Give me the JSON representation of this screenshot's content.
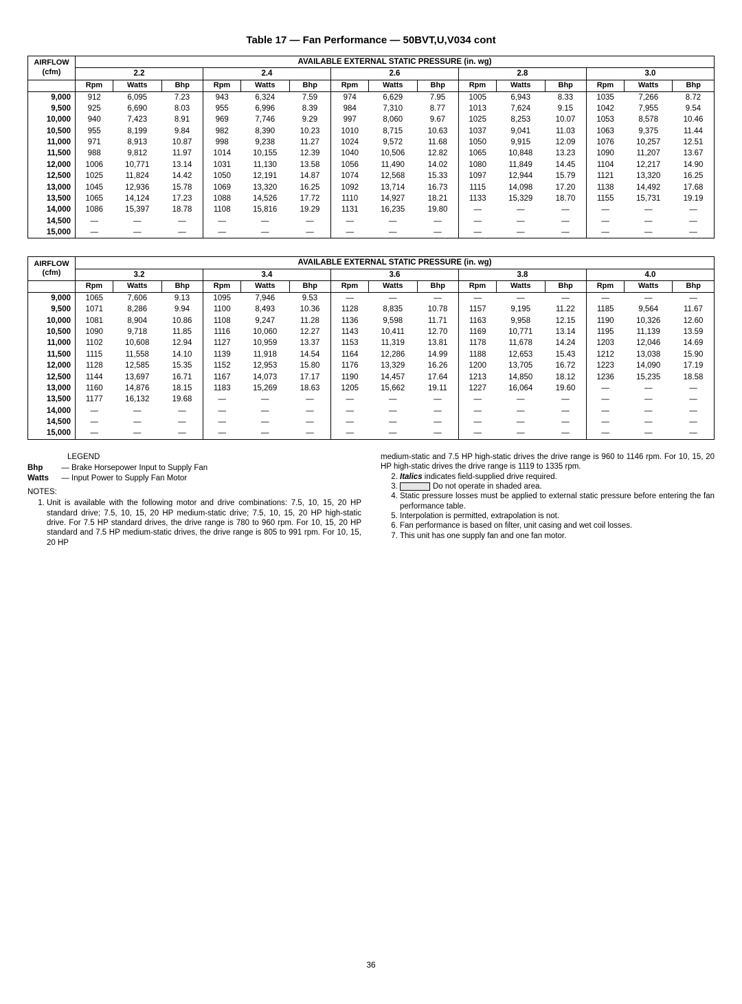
{
  "title": "Table 17 — Fan Performance — 50BVT,U,V034 cont",
  "super_header": "AVAILABLE EXTERNAL STATIC PRESSURE (in. wg)",
  "airflow_label_line1": "AIRFLOW",
  "airflow_label_line2": "(cfm)",
  "sub_headers": [
    "Rpm",
    "Watts",
    "Bhp"
  ],
  "table1": {
    "pressures": [
      "2.2",
      "2.4",
      "2.6",
      "2.8",
      "3.0"
    ],
    "airflows": [
      "9,000",
      "9,500",
      "10,000",
      "10,500",
      "11,000",
      "11,500",
      "12,000",
      "12,500",
      "13,000",
      "13,500",
      "14,000",
      "14,500",
      "15,000"
    ],
    "data": [
      [
        [
          "912",
          "6,095",
          "7.23"
        ],
        [
          "943",
          "6,324",
          "7.59"
        ],
        [
          "974",
          "6,629",
          "7.95"
        ],
        [
          "1005",
          "6,943",
          "8.33"
        ],
        [
          "1035",
          "7,266",
          "8.72"
        ]
      ],
      [
        [
          "925",
          "6,690",
          "8.03"
        ],
        [
          "955",
          "6,996",
          "8.39"
        ],
        [
          "984",
          "7,310",
          "8.77"
        ],
        [
          "1013",
          "7,624",
          "9.15"
        ],
        [
          "1042",
          "7,955",
          "9.54"
        ]
      ],
      [
        [
          "940",
          "7,423",
          "8.91"
        ],
        [
          "969",
          "7,746",
          "9.29"
        ],
        [
          "997",
          "8,060",
          "9.67"
        ],
        [
          "1025",
          "8,253",
          "10.07"
        ],
        [
          "1053",
          "8,578",
          "10.46"
        ]
      ],
      [
        [
          "955",
          "8,199",
          "9.84"
        ],
        [
          "982",
          "8,390",
          "10.23"
        ],
        [
          "1010",
          "8,715",
          "10.63"
        ],
        [
          "1037",
          "9,041",
          "11.03"
        ],
        [
          "1063",
          "9,375",
          "11.44"
        ]
      ],
      [
        [
          "971",
          "8,913",
          "10.87"
        ],
        [
          "998",
          "9,238",
          "11.27"
        ],
        [
          "1024",
          "9,572",
          "11.68"
        ],
        [
          "1050",
          "9,915",
          "12.09"
        ],
        [
          "1076",
          "10,257",
          "12.51"
        ]
      ],
      [
        [
          "988",
          "9,812",
          "11.97"
        ],
        [
          "1014",
          "10,155",
          "12.39"
        ],
        [
          "1040",
          "10,506",
          "12.82"
        ],
        [
          "1065",
          "10,848",
          "13.23"
        ],
        [
          "1090",
          "11,207",
          "13.67"
        ]
      ],
      [
        [
          "1006",
          "10,771",
          "13.14"
        ],
        [
          "1031",
          "11,130",
          "13.58"
        ],
        [
          "1056",
          "11,490",
          "14.02"
        ],
        [
          "1080",
          "11,849",
          "14.45"
        ],
        [
          "1104",
          "12,217",
          "14.90"
        ]
      ],
      [
        [
          "1025",
          "11,824",
          "14.42"
        ],
        [
          "1050",
          "12,191",
          "14.87"
        ],
        [
          "1074",
          "12,568",
          "15.33"
        ],
        [
          "1097",
          "12,944",
          "15.79"
        ],
        [
          "1121",
          "13,320",
          "16.25"
        ]
      ],
      [
        [
          "1045",
          "12,936",
          "15.78"
        ],
        [
          "1069",
          "13,320",
          "16.25"
        ],
        [
          "1092",
          "13,714",
          "16.73"
        ],
        [
          "1115",
          "14,098",
          "17.20"
        ],
        [
          "1138",
          "14,492",
          "17.68"
        ]
      ],
      [
        [
          "1065",
          "14,124",
          "17.23"
        ],
        [
          "1088",
          "14,526",
          "17.72"
        ],
        [
          "1110",
          "14,927",
          "18.21"
        ],
        [
          "1133",
          "15,329",
          "18.70"
        ],
        [
          "1155",
          "15,731",
          "19.19"
        ]
      ],
      [
        [
          "1086",
          "15,397",
          "18.78"
        ],
        [
          "1108",
          "15,816",
          "19.29"
        ],
        [
          "1131",
          "16,235",
          "19.80"
        ],
        [
          "—",
          "—",
          "—"
        ],
        [
          "—",
          "—",
          "—"
        ]
      ],
      [
        [
          "—",
          "—",
          "—"
        ],
        [
          "—",
          "—",
          "—"
        ],
        [
          "—",
          "—",
          "—"
        ],
        [
          "—",
          "—",
          "—"
        ],
        [
          "—",
          "—",
          "—"
        ]
      ],
      [
        [
          "—",
          "—",
          "—"
        ],
        [
          "—",
          "—",
          "—"
        ],
        [
          "—",
          "—",
          "—"
        ],
        [
          "—",
          "—",
          "—"
        ],
        [
          "—",
          "—",
          "—"
        ]
      ]
    ]
  },
  "table2": {
    "pressures": [
      "3.2",
      "3.4",
      "3.6",
      "3.8",
      "4.0"
    ],
    "airflows": [
      "9,000",
      "9,500",
      "10,000",
      "10,500",
      "11,000",
      "11,500",
      "12,000",
      "12,500",
      "13,000",
      "13,500",
      "14,000",
      "14,500",
      "15,000"
    ],
    "data": [
      [
        [
          "1065",
          "7,606",
          "9.13"
        ],
        [
          "1095",
          "7,946",
          "9.53"
        ],
        [
          "—",
          "—",
          "—"
        ],
        [
          "—",
          "—",
          "—"
        ],
        [
          "—",
          "—",
          "—"
        ]
      ],
      [
        [
          "1071",
          "8,286",
          "9.94"
        ],
        [
          "1100",
          "8,493",
          "10.36"
        ],
        [
          "1128",
          "8,835",
          "10.78"
        ],
        [
          "1157",
          "9,195",
          "11.22"
        ],
        [
          "1185",
          "9,564",
          "11.67"
        ]
      ],
      [
        [
          "1081",
          "8,904",
          "10.86"
        ],
        [
          "1108",
          "9,247",
          "11.28"
        ],
        [
          "1136",
          "9,598",
          "11.71"
        ],
        [
          "1163",
          "9,958",
          "12.15"
        ],
        [
          "1190",
          "10,326",
          "12.60"
        ]
      ],
      [
        [
          "1090",
          "9,718",
          "11.85"
        ],
        [
          "1116",
          "10,060",
          "12.27"
        ],
        [
          "1143",
          "10,411",
          "12.70"
        ],
        [
          "1169",
          "10,771",
          "13.14"
        ],
        [
          "1195",
          "11,139",
          "13.59"
        ]
      ],
      [
        [
          "1102",
          "10,608",
          "12.94"
        ],
        [
          "1127",
          "10,959",
          "13.37"
        ],
        [
          "1153",
          "11,319",
          "13.81"
        ],
        [
          "1178",
          "11,678",
          "14.24"
        ],
        [
          "1203",
          "12,046",
          "14.69"
        ]
      ],
      [
        [
          "1115",
          "11,558",
          "14.10"
        ],
        [
          "1139",
          "11,918",
          "14.54"
        ],
        [
          "1164",
          "12,286",
          "14.99"
        ],
        [
          "1188",
          "12,653",
          "15.43"
        ],
        [
          "1212",
          "13,038",
          "15.90"
        ]
      ],
      [
        [
          "1128",
          "12,585",
          "15.35"
        ],
        [
          "1152",
          "12,953",
          "15.80"
        ],
        [
          "1176",
          "13,329",
          "16.26"
        ],
        [
          "1200",
          "13,705",
          "16.72"
        ],
        [
          "1223",
          "14,090",
          "17.19"
        ]
      ],
      [
        [
          "1144",
          "13,697",
          "16.71"
        ],
        [
          "1167",
          "14,073",
          "17.17"
        ],
        [
          "1190",
          "14,457",
          "17.64"
        ],
        [
          "1213",
          "14,850",
          "18.12"
        ],
        [
          "1236",
          "15,235",
          "18.58"
        ]
      ],
      [
        [
          "1160",
          "14,876",
          "18.15"
        ],
        [
          "1183",
          "15,269",
          "18.63"
        ],
        [
          "1205",
          "15,662",
          "19.11"
        ],
        [
          "1227",
          "16,064",
          "19.60"
        ],
        [
          "—",
          "—",
          "—"
        ]
      ],
      [
        [
          "1177",
          "16,132",
          "19.68"
        ],
        [
          "—",
          "—",
          "—"
        ],
        [
          "—",
          "—",
          "—"
        ],
        [
          "—",
          "—",
          "—"
        ],
        [
          "—",
          "—",
          "—"
        ]
      ],
      [
        [
          "—",
          "—",
          "—"
        ],
        [
          "—",
          "—",
          "—"
        ],
        [
          "—",
          "—",
          "—"
        ],
        [
          "—",
          "—",
          "—"
        ],
        [
          "—",
          "—",
          "—"
        ]
      ],
      [
        [
          "—",
          "—",
          "—"
        ],
        [
          "—",
          "—",
          "—"
        ],
        [
          "—",
          "—",
          "—"
        ],
        [
          "—",
          "—",
          "—"
        ],
        [
          "—",
          "—",
          "—"
        ]
      ],
      [
        [
          "—",
          "—",
          "—"
        ],
        [
          "—",
          "—",
          "—"
        ],
        [
          "—",
          "—",
          "—"
        ],
        [
          "—",
          "—",
          "—"
        ],
        [
          "—",
          "—",
          "—"
        ]
      ]
    ]
  },
  "legend": {
    "title": "LEGEND",
    "items": [
      {
        "term": "Bhp",
        "def": "Brake Horsepower Input to Supply Fan"
      },
      {
        "term": "Watts",
        "def": "Input Power to Supply Fan Motor"
      }
    ]
  },
  "notes_title": "NOTES:",
  "notes_left": [
    "Unit is available with the following motor and drive combinations: 7.5, 10, 15, 20 HP standard drive; 7.5, 10, 15, 20 HP medium-static drive; 7.5, 10, 15, 20 HP high-static drive.\nFor 7.5 HP standard drives, the drive range is 780 to 960 rpm. For 10, 15, 20 HP standard and 7.5 HP medium-static drives, the drive range is 805 to 991 rpm. For 10, 15, 20 HP"
  ],
  "notes_right_continuation": "medium-static and 7.5 HP high-static drives the drive range is 960 to 1146 rpm. For 10, 15, 20 HP high-static drives the drive range is 1119 to 1335 rpm.",
  "notes_right": [
    " indicates field-supplied drive required.",
    "Do not operate in shaded area.",
    "Static pressure losses must be applied to external static pressure before entering the fan performance table.",
    "Interpolation is permitted, extrapolation is not.",
    "Fan performance is based on filter, unit casing and wet coil losses.",
    "This unit has one supply fan and one fan motor."
  ],
  "italics_word": "Italics",
  "page_number": "36"
}
